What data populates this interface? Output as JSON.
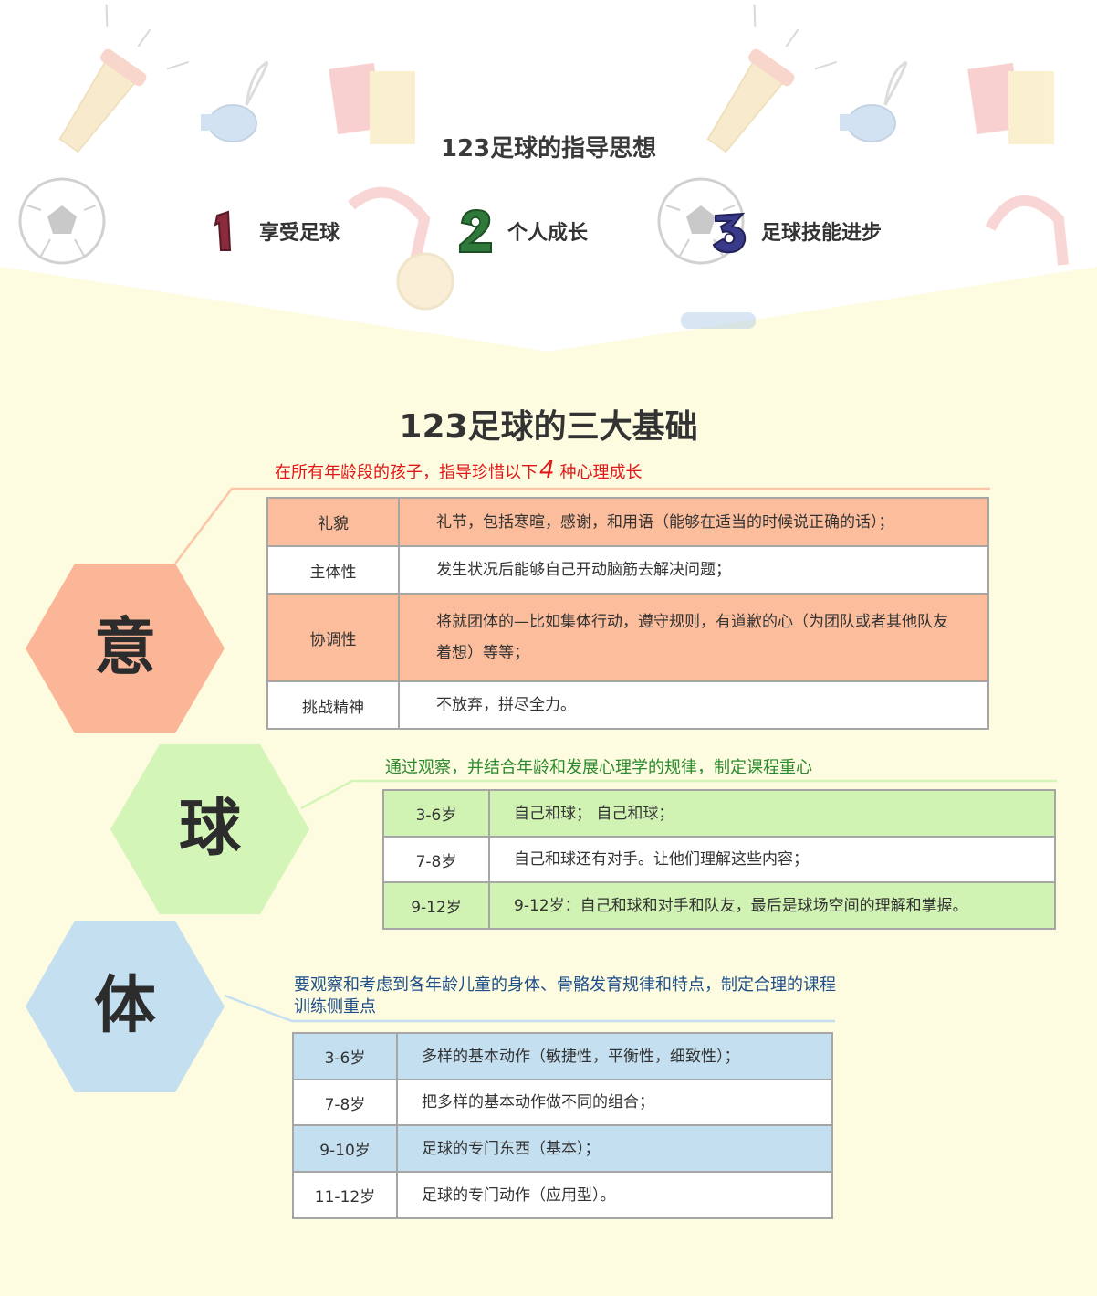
{
  "header": {
    "title": "123足球的指导思想",
    "principles": [
      {
        "num": "1",
        "label": "享受足球",
        "color": "#8a2b3c"
      },
      {
        "num": "2",
        "label": "个人成长",
        "color": "#2f7a3a"
      },
      {
        "num": "3",
        "label": "足球技能进步",
        "color": "#3a3a8a"
      }
    ]
  },
  "main_title": "123足球的三大基础",
  "sections": {
    "yi": {
      "hex_label": "意",
      "hex_color": "#fbb698",
      "subtitle_pre": "在所有年龄段的孩子，指导珍惜以下",
      "subtitle_num": "4",
      "subtitle_post": "种心理成长",
      "subtitle_color": "#e01818",
      "rows": [
        {
          "c1": "礼貌",
          "c2": "礼节，包括寒暄，感谢，和用语（能够在适当的时候说正确的话）；"
        },
        {
          "c1": "主体性",
          "c2": "发生状况后能够自己开动脑筋去解决问题；"
        },
        {
          "c1": "协调性",
          "c2": "将就团体的—比如集体行动，遵守规则，有道歉的心（为团队或者其他队友着想）等等；"
        },
        {
          "c1": "挑战精神",
          "c2": "不放弃，拼尽全力。"
        }
      ]
    },
    "qiu": {
      "hex_label": "球",
      "hex_color": "#d4f5b8",
      "subtitle": "通过观察，并结合年龄和发展心理学的规律，制定课程重心",
      "subtitle_color": "#2b8a2b",
      "rows": [
        {
          "c1": "3-6岁",
          "c2": "自己和球；  自己和球；"
        },
        {
          "c1": "7-8岁",
          "c2": "自己和球还有对手。让他们理解这些内容；"
        },
        {
          "c1": "9-12岁",
          "c2": "9-12岁：自己和球和对手和队友，最后是球场空间的理解和掌握。"
        }
      ]
    },
    "ti": {
      "hex_label": "体",
      "hex_color": "#c3dff0",
      "subtitle": "要观察和考虑到各年龄儿童的身体、骨骼发育规律和特点，制定合理的课程训练侧重点",
      "subtitle_color": "#1f4f8a",
      "rows": [
        {
          "c1": "3-6岁",
          "c2": "多样的基本动作（敏捷性，平衡性，细致性）；"
        },
        {
          "c1": "7-8岁",
          "c2": "把多样的基本动作做不同的组合；"
        },
        {
          "c1": "9-10岁",
          "c2": "足球的专门东西（基本）；"
        },
        {
          "c1": "11-12岁",
          "c2": "足球的专门动作（应用型）。"
        }
      ]
    }
  }
}
